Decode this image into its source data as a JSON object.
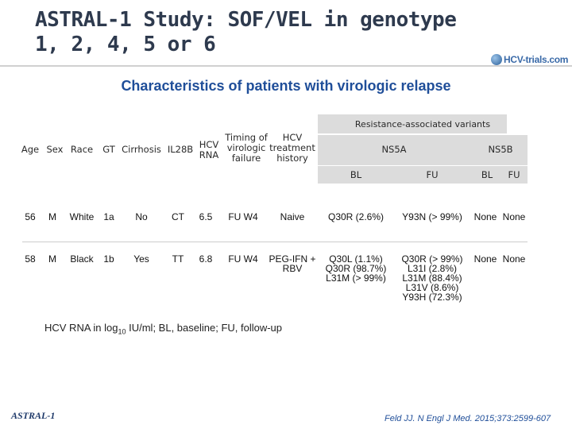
{
  "title_line1": "ASTRAL-1 Study: SOF/VEL in genotype",
  "title_line2": "1, 2, 4, 5 or 6",
  "logo_text": "HCV-trials.com",
  "subtitle": "Characteristics of patients with virologic relapse",
  "table": {
    "headers": {
      "age": "Age",
      "sex": "Sex",
      "race": "Race",
      "gt": "GT",
      "cirrhosis": "Cirrhosis",
      "il28b": "IL28B",
      "hcv_rna": "HCV RNA",
      "timing": "Timing of virologic failure",
      "treatment_history": "HCV treatment history",
      "resistance": "Resistance-associated variants",
      "ns5a": "NS5A",
      "ns5b": "NS5B",
      "ns5a_bl": "BL",
      "ns5a_fu": "FU",
      "ns5b_bl": "BL",
      "ns5b_fu": "FU"
    },
    "rows": [
      {
        "age": "56",
        "sex": "M",
        "race": "White",
        "gt": "1a",
        "cirrhosis": "No",
        "il28b": "CT",
        "hcv_rna": "6.5",
        "timing": "FU W4",
        "history": "Naive",
        "ns5a_bl": "Q30R (2.6%)",
        "ns5a_fu": "Y93N (> 99%)",
        "ns5b_bl": "None",
        "ns5b_fu": "None"
      },
      {
        "age": "58",
        "sex": "M",
        "race": "Black",
        "gt": "1b",
        "cirrhosis": "Yes",
        "il28b": "TT",
        "hcv_rna": "6.8",
        "timing": "FU W4",
        "history": "PEG-IFN + RBV",
        "ns5a_bl": "Q30L (1.1%)\nQ30R (98.7%)\nL31M (> 99%)",
        "ns5a_fu": "Q30R (> 99%)\nL31I (2.8%)\nL31M (88.4%)\nL31V (8.6%)\nY93H (72.3%)",
        "ns5b_bl": "None",
        "ns5b_fu": "None"
      }
    ]
  },
  "footnote_prefix": "HCV RNA in log",
  "footnote_sub": "10",
  "footnote_suffix": " IU/ml; BL, baseline; FU, follow-up",
  "badge": "ASTRAL-1",
  "citation": "Feld JJ. N Engl J Med. 2015;373:2599-607",
  "colors": {
    "title": "#2e3a4e",
    "subtitle": "#1f4e99",
    "header_bg": "#dcdcdc"
  }
}
